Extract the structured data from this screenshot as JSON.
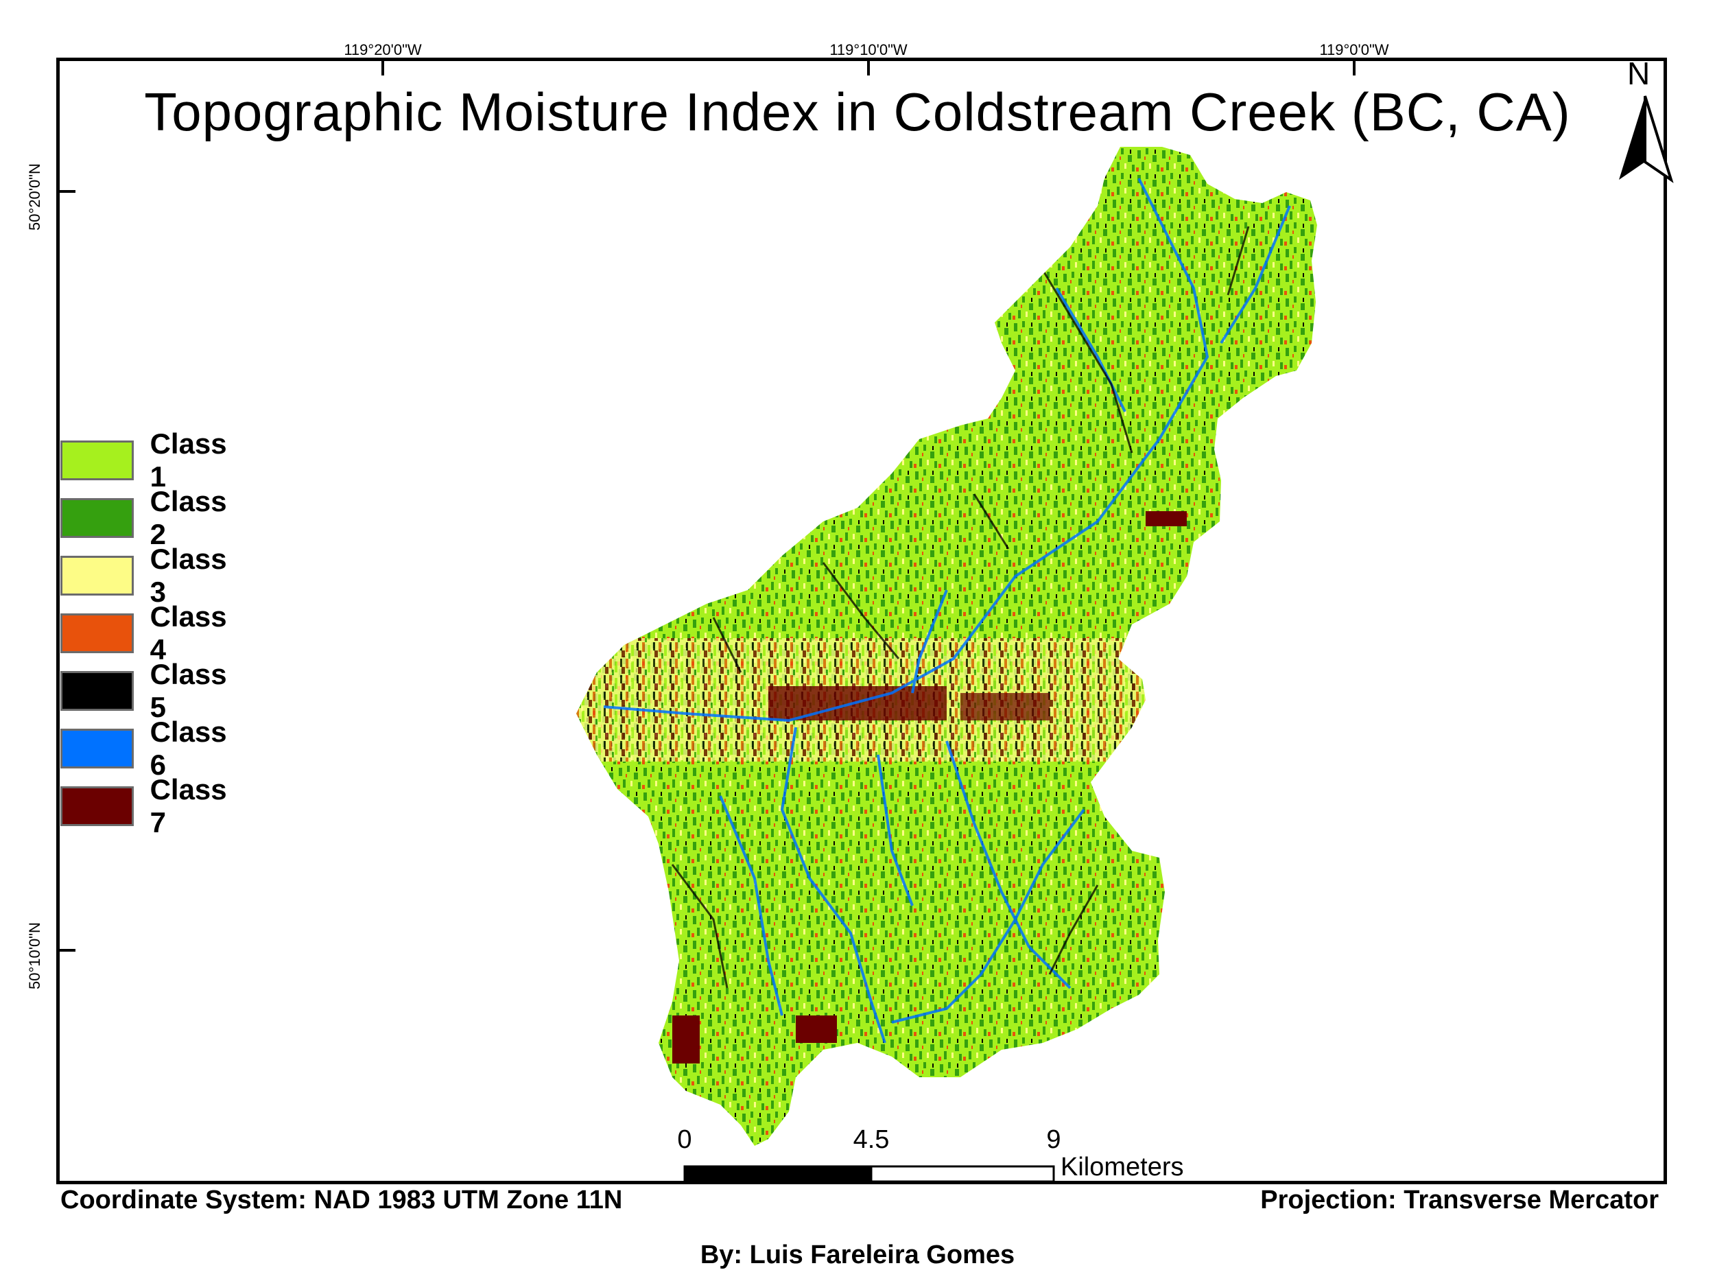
{
  "map": {
    "title": "Topographic Moisture Index in Coldstream Creek (BC, CA)",
    "graticule": {
      "longitudes": [
        "119°20'0\"W",
        "119°10'0\"W",
        "119°0'0\"W"
      ],
      "latitudes": [
        "50°20'0\"N",
        "50°10'0\"N"
      ]
    },
    "north_arrow_label": "N",
    "legend": [
      {
        "label": "Class 1",
        "color": "#a6f01e"
      },
      {
        "label": "Class 2",
        "color": "#35a00f"
      },
      {
        "label": "Class 3",
        "color": "#fdfc86"
      },
      {
        "label": "Class 4",
        "color": "#e8520c"
      },
      {
        "label": "Class 5",
        "color": "#000000"
      },
      {
        "label": "Class 6",
        "color": "#0072ff"
      },
      {
        "label": "Class 7",
        "color": "#6b0000"
      }
    ],
    "scale_bar": {
      "ticks": [
        "0",
        "4.5",
        "9"
      ],
      "unit": "Kilometers"
    },
    "footer": {
      "coordinate_system": "Coordinate System: NAD 1983 UTM Zone 11N",
      "projection": "Projection: Transverse Mercator",
      "author": "By: Luis Fareleira Gomes"
    }
  }
}
